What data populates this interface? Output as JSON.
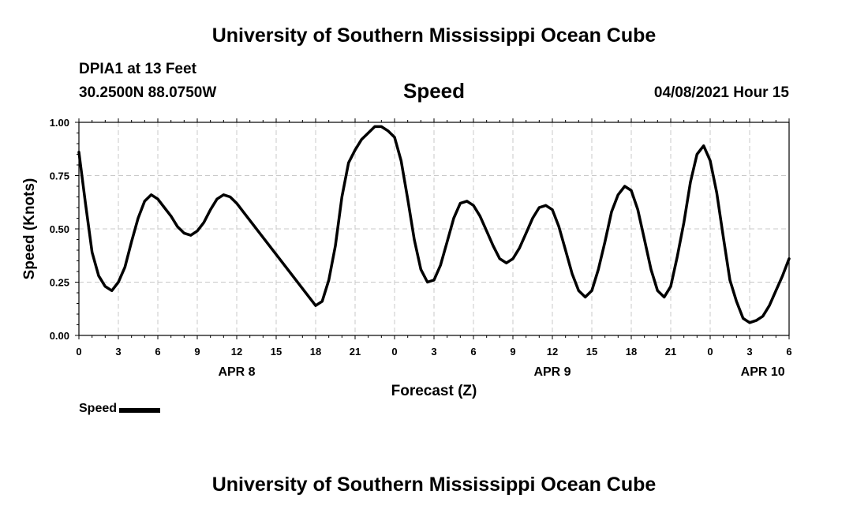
{
  "header": {
    "title": "University of Southern Mississippi Ocean Cube",
    "station": "DPIA1 at 13 Feet",
    "coordinates": "30.2500N  88.0750W",
    "variable": "Speed",
    "datetime": "04/08/2021 Hour 15"
  },
  "footer": {
    "title": "University of Southern Mississippi Ocean Cube"
  },
  "legend": {
    "label": "Speed",
    "color": "#000000"
  },
  "chart_data": {
    "type": "line",
    "title": "Speed",
    "xlabel": "Forecast (Z)",
    "ylabel": "Speed (Knots)",
    "xlim": [
      0,
      54
    ],
    "ylim": [
      0,
      1
    ],
    "grid": true,
    "legend_position": "bottom-left",
    "y_ticks": [
      "0.00",
      "0.25",
      "0.50",
      "0.75",
      "1.00"
    ],
    "x_tick_labels": [
      "0",
      "3",
      "6",
      "9",
      "12",
      "15",
      "18",
      "21",
      "0",
      "3",
      "6",
      "9",
      "12",
      "15",
      "18",
      "21",
      "0",
      "3",
      "6"
    ],
    "date_labels": [
      {
        "label": "APR 8",
        "at": 12
      },
      {
        "label": "APR 9",
        "at": 36
      },
      {
        "label": "APR 10",
        "at": 52
      }
    ],
    "series": [
      {
        "name": "Speed",
        "color": "#000000",
        "x": [
          0,
          0.5,
          1,
          1.5,
          2,
          2.5,
          3,
          3.5,
          4,
          4.5,
          5,
          5.5,
          6,
          6.5,
          7,
          7.5,
          8,
          8.5,
          9,
          9.5,
          10,
          10.5,
          11,
          11.5,
          12,
          12.5,
          18,
          18.5,
          19,
          19.5,
          20,
          20.5,
          21,
          21.5,
          22,
          22.5,
          23,
          23.5,
          24,
          24.5,
          25,
          25.5,
          26,
          26.5,
          27,
          27.5,
          28,
          28.5,
          29,
          29.5,
          30,
          30.5,
          31,
          31.5,
          32,
          32.5,
          33,
          33.5,
          34,
          34.5,
          35,
          35.5,
          36,
          36.5,
          37,
          37.5,
          38,
          38.5,
          39,
          39.5,
          40,
          40.5,
          41,
          41.5,
          42,
          42.5,
          43,
          43.5,
          44,
          44.5,
          45,
          45.5,
          46,
          46.5,
          47,
          47.5,
          48,
          48.5,
          49,
          49.5,
          50,
          50.5,
          51,
          51.5,
          52,
          52.5,
          53,
          53.5,
          54
        ],
        "values": [
          0.86,
          0.62,
          0.39,
          0.28,
          0.23,
          0.21,
          0.25,
          0.32,
          0.44,
          0.55,
          0.63,
          0.66,
          0.64,
          0.6,
          0.56,
          0.51,
          0.48,
          0.47,
          0.49,
          0.53,
          0.59,
          0.64,
          0.66,
          0.65,
          0.62,
          0.58,
          0.14,
          0.16,
          0.26,
          0.42,
          0.65,
          0.81,
          0.87,
          0.92,
          0.95,
          0.98,
          0.98,
          0.96,
          0.93,
          0.82,
          0.64,
          0.45,
          0.31,
          0.25,
          0.26,
          0.33,
          0.44,
          0.55,
          0.62,
          0.63,
          0.61,
          0.56,
          0.49,
          0.42,
          0.36,
          0.34,
          0.36,
          0.41,
          0.48,
          0.55,
          0.6,
          0.61,
          0.59,
          0.51,
          0.4,
          0.29,
          0.21,
          0.18,
          0.21,
          0.31,
          0.44,
          0.58,
          0.66,
          0.7,
          0.68,
          0.59,
          0.45,
          0.31,
          0.21,
          0.18,
          0.23,
          0.37,
          0.53,
          0.72,
          0.85,
          0.89,
          0.82,
          0.67,
          0.46,
          0.26,
          0.16,
          0.08,
          0.06,
          0.07,
          0.09,
          0.14,
          0.21,
          0.28,
          0.36
        ]
      }
    ]
  }
}
